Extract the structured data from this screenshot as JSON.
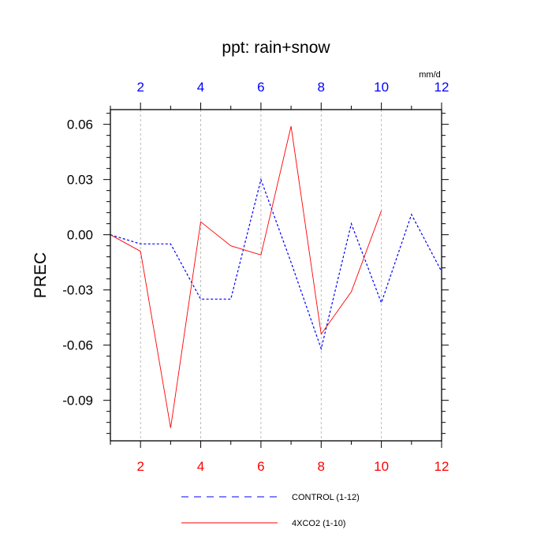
{
  "chart_data": {
    "type": "line",
    "title": "ppt: rain+snow",
    "ylabel": "PREC",
    "top_axis_units": "mm/d",
    "xlim": [
      1,
      12
    ],
    "ylim": [
      -0.112,
      0.068
    ],
    "yticks": [
      0.06,
      0.03,
      0.0,
      -0.03,
      -0.06,
      -0.09
    ],
    "ytick_labels": [
      "0.06",
      "0.03",
      "0.00",
      "-0.03",
      "-0.06",
      "-0.09"
    ],
    "xticks": [
      2,
      4,
      6,
      8,
      10,
      12
    ],
    "xtick_labels": [
      "2",
      "4",
      "6",
      "8",
      "10",
      "12"
    ],
    "grid_x": true,
    "series": [
      {
        "name": "CONTROL (1-12)",
        "color": "#0000ff",
        "style": "dashed",
        "x": [
          1,
          2,
          3,
          4,
          5,
          6,
          7,
          8,
          9,
          10,
          11,
          12
        ],
        "y": [
          0.0,
          -0.005,
          -0.005,
          -0.035,
          -0.035,
          0.03,
          -0.015,
          -0.062,
          0.006,
          -0.037,
          0.011,
          -0.02
        ]
      },
      {
        "name": "4XCO2 (1-10)",
        "color": "#ff0000",
        "style": "solid",
        "x": [
          1,
          2,
          3,
          4,
          5,
          6,
          7,
          8,
          9,
          10
        ],
        "y": [
          0.0,
          -0.009,
          -0.105,
          0.007,
          -0.006,
          -0.011,
          0.059,
          -0.054,
          -0.031,
          0.013
        ]
      }
    ],
    "legend_placement": "bottom"
  }
}
